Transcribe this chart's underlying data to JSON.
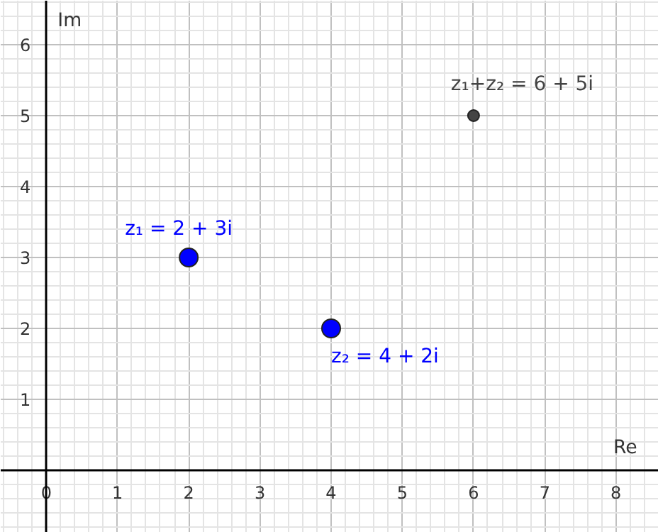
{
  "chart_data": {
    "type": "scatter",
    "xlabel": "Re",
    "ylabel": "Im",
    "xlim": [
      -0.64,
      8.6
    ],
    "ylim": [
      -0.88,
      6.62
    ],
    "xticks": [
      0,
      1,
      2,
      3,
      4,
      5,
      6,
      7,
      8
    ],
    "yticks": [
      1,
      2,
      3,
      4,
      5,
      6
    ],
    "grid": true,
    "marker": "circle",
    "series": [
      {
        "color": "#0000ff",
        "x": [
          2,
          4
        ],
        "values": [
          3,
          2
        ]
      },
      {
        "color": "#444444",
        "x": [
          6
        ],
        "values": [
          5
        ]
      }
    ],
    "annotations": [
      {
        "text": "z₁ = 2 + 3i",
        "x": 2,
        "y": 3
      },
      {
        "text": "z₂ = 4 + 2i",
        "x": 4,
        "y": 2
      },
      {
        "text": "z₁+z₂ = 6 + 5i",
        "x": 6,
        "y": 5
      }
    ]
  }
}
